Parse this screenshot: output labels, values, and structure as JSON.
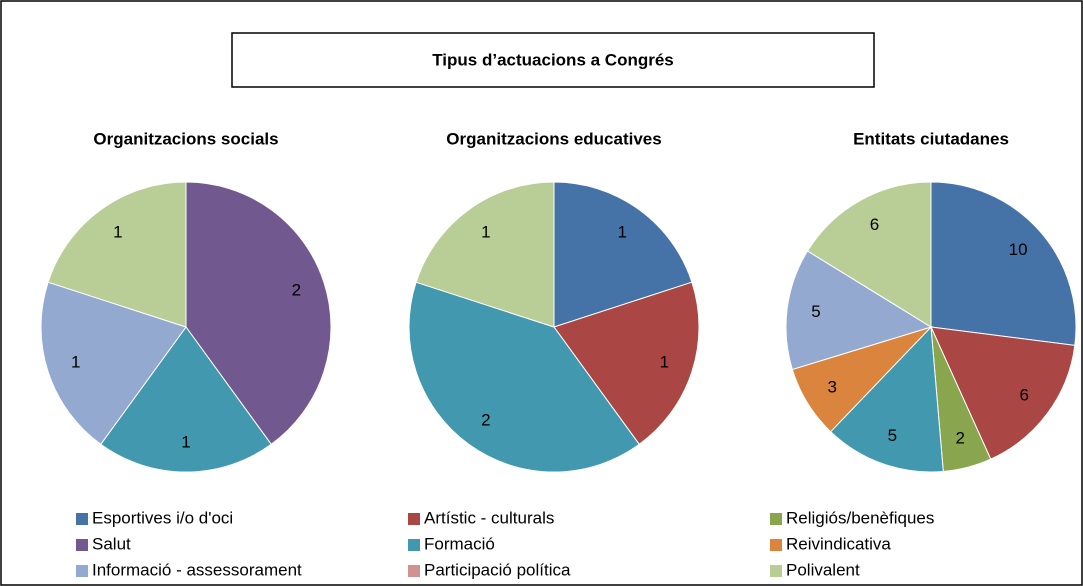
{
  "title": "Tipus d’actuacions a Congrés",
  "chart_data": [
    {
      "type": "pie",
      "title": "Organitzacions socials",
      "categories": [
        "Esportives i/o d'oci",
        "Artístic - culturals",
        "Religiós/benèfiques",
        "Salut",
        "Formació",
        "Reivindicativa",
        "Informació - assessorament",
        "Participació política",
        "Polivalent"
      ],
      "colors": [
        "#4572a7",
        "#aa4643",
        "#89a54e",
        "#71588f",
        "#4198af",
        "#db843d",
        "#93a9cf",
        "#d19392",
        "#b9cd96"
      ],
      "values": [
        0,
        0,
        0,
        2,
        1,
        0,
        1,
        0,
        1
      ]
    },
    {
      "type": "pie",
      "title": "Organitzacions educatives",
      "categories": [
        "Esportives i/o d'oci",
        "Artístic - culturals",
        "Religiós/benèfiques",
        "Salut",
        "Formació",
        "Reivindicativa",
        "Informació - assessorament",
        "Participació política",
        "Polivalent"
      ],
      "colors": [
        "#4572a7",
        "#aa4643",
        "#89a54e",
        "#71588f",
        "#4198af",
        "#db843d",
        "#93a9cf",
        "#d19392",
        "#b9cd96"
      ],
      "values": [
        1,
        1,
        0,
        0,
        2,
        0,
        0,
        0,
        1
      ]
    },
    {
      "type": "pie",
      "title": "Entitats ciutadanes",
      "categories": [
        "Esportives i/o d'oci",
        "Artístic - culturals",
        "Religiós/benèfiques",
        "Salut",
        "Formació",
        "Reivindicativa",
        "Informació - assessorament",
        "Participació política",
        "Polivalent"
      ],
      "colors": [
        "#4572a7",
        "#aa4643",
        "#89a54e",
        "#71588f",
        "#4198af",
        "#db843d",
        "#93a9cf",
        "#d19392",
        "#b9cd96"
      ],
      "values": [
        10,
        6,
        2,
        0,
        5,
        3,
        5,
        0,
        6
      ]
    }
  ]
}
